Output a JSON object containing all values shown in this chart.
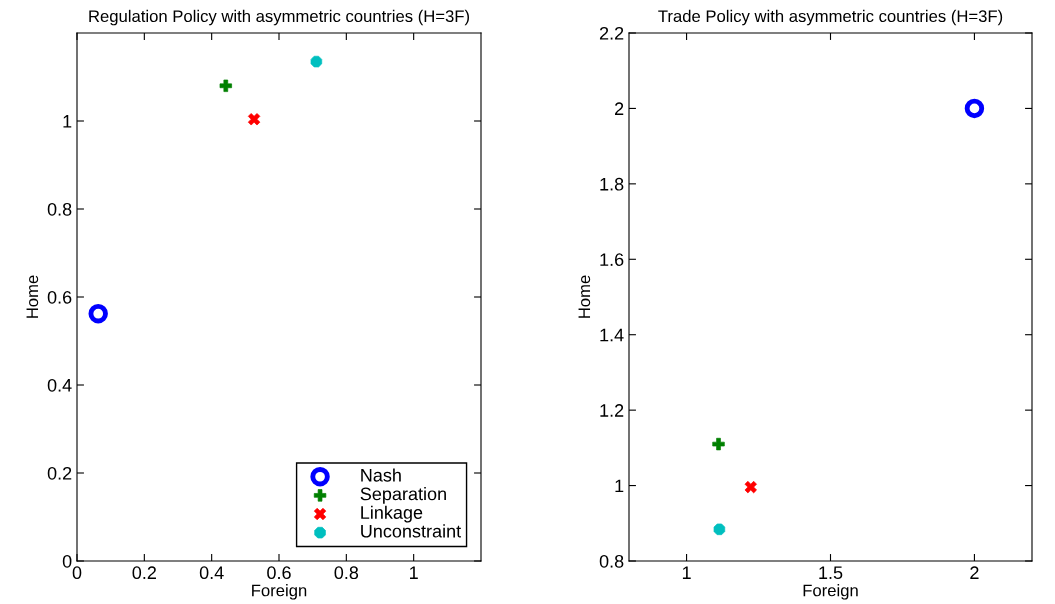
{
  "chart_data": [
    {
      "type": "scatter",
      "title": "Regulation Policy with asymmetric countries (H=3F)",
      "xlabel": "Foreign",
      "ylabel": "Home",
      "xlim": [
        0,
        1.2
      ],
      "xticks": [
        0,
        0.2,
        0.4,
        0.6,
        0.8,
        1
      ],
      "ylim": [
        0,
        1.2
      ],
      "yticks": [
        0,
        0.2,
        0.4,
        0.6,
        0.8,
        1
      ],
      "legend": "bottom right",
      "grid": false,
      "series": [
        {
          "name": "Nash",
          "color": "#0000ff",
          "marker": "circle",
          "x": [
            0.063
          ],
          "values": [
            0.562
          ]
        },
        {
          "name": "Separation",
          "color": "#008000",
          "marker": "cross",
          "x": [
            0.442
          ],
          "values": [
            1.08
          ]
        },
        {
          "name": "Linkage",
          "color": "#ff0000",
          "marker": "x",
          "x": [
            0.526
          ],
          "values": [
            1.004
          ]
        },
        {
          "name": "Unconstraint",
          "color": "#00bfbf",
          "x": [
            0.711
          ],
          "values": [
            1.135
          ]
        }
      ]
    },
    {
      "type": "scatter",
      "title": "Trade Policy with asymmetric countries (H=3F)",
      "xlabel": "Foreign",
      "ylabel": "Home",
      "xlim": [
        0.8,
        2.2
      ],
      "xticks": [
        1,
        1.5,
        2
      ],
      "ylim": [
        0.8,
        2.2
      ],
      "yticks": [
        0.8,
        1,
        1.2,
        1.4,
        1.6,
        1.8,
        2,
        2.2
      ],
      "legend": false,
      "grid": false,
      "series": [
        {
          "color": "#0000ff",
          "marker": "circle",
          "x": [
            2.0
          ],
          "values": [
            2.0
          ]
        },
        {
          "color": "#008000",
          "marker": "cross",
          "x": [
            1.111
          ],
          "values": [
            1.11
          ]
        },
        {
          "color": "#ff0000",
          "marker": "x",
          "x": [
            1.223
          ],
          "values": [
            0.996
          ]
        },
        {
          "color": "#00bfbf",
          "x": [
            1.114
          ],
          "values": [
            0.884
          ]
        }
      ]
    }
  ]
}
